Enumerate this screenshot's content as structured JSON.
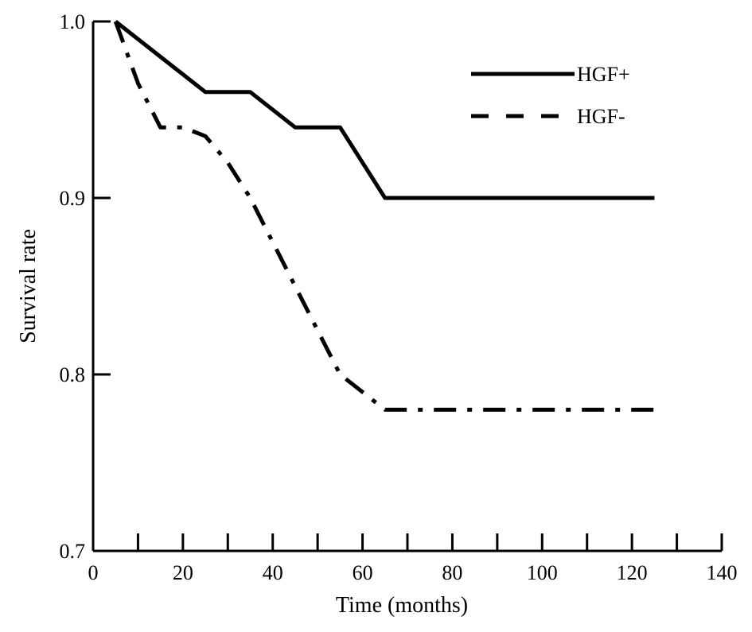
{
  "chart_data": {
    "type": "line",
    "title": "",
    "xlabel": "Time (months)",
    "ylabel": "Survival rate",
    "xlim": [
      0,
      140
    ],
    "ylim": [
      0.7,
      1.0
    ],
    "x_ticks": [
      0,
      20,
      40,
      60,
      80,
      100,
      120,
      140
    ],
    "x_minor_ticks": [
      10,
      30,
      50,
      70,
      90,
      110,
      130
    ],
    "y_ticks": [
      0.7,
      0.8,
      0.9,
      1.0
    ],
    "x_tick_labels": [
      "0",
      "20",
      "40",
      "60",
      "80",
      "100",
      "120",
      "140"
    ],
    "y_tick_labels": [
      "0.7",
      "0.8",
      "0.9",
      "1.0"
    ],
    "grid": false,
    "legend_position": "top-right",
    "series": [
      {
        "name": "HGF+",
        "style": "solid",
        "color": "#000000",
        "x": [
          5,
          15,
          25,
          35,
          45,
          55,
          65,
          125
        ],
        "y": [
          1.0,
          0.98,
          0.96,
          0.96,
          0.94,
          0.94,
          0.9,
          0.9
        ]
      },
      {
        "name": "HGF-",
        "style": "dashed",
        "color": "#000000",
        "x": [
          5,
          10,
          15,
          20,
          25,
          30,
          35,
          40,
          45,
          50,
          55,
          60,
          65,
          125
        ],
        "y": [
          1.0,
          0.965,
          0.94,
          0.94,
          0.935,
          0.92,
          0.9,
          0.875,
          0.85,
          0.825,
          0.8,
          0.79,
          0.78,
          0.78
        ]
      }
    ]
  }
}
